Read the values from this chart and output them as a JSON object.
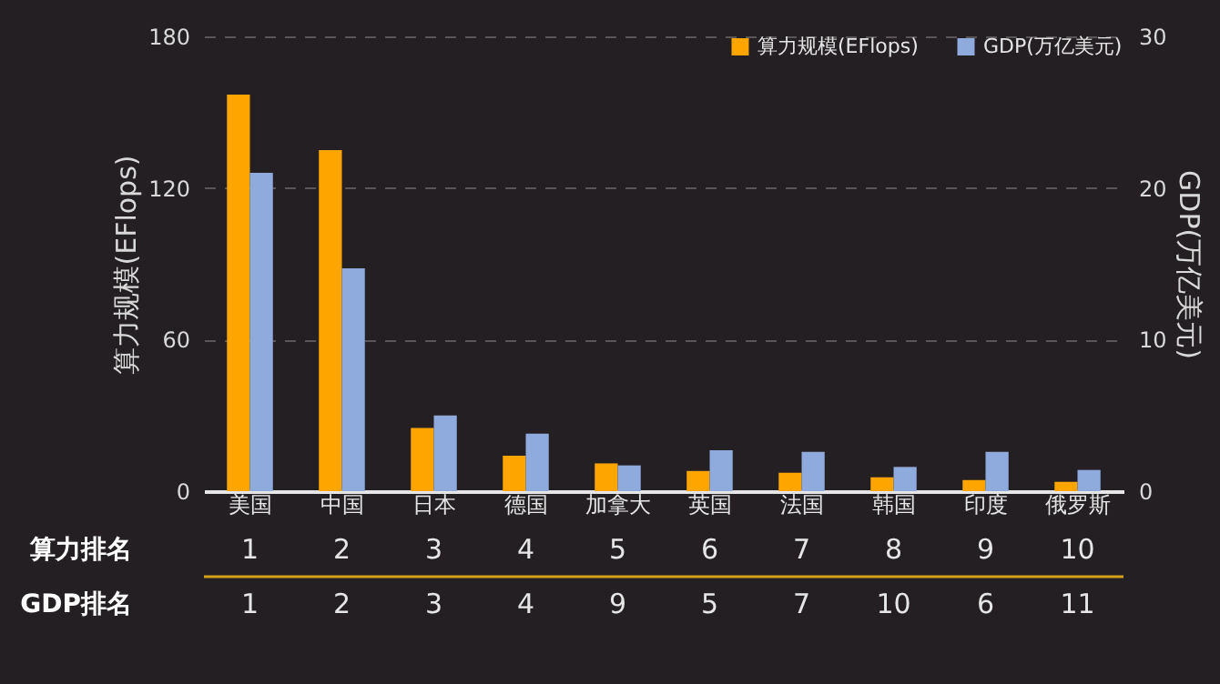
{
  "chart_data": {
    "type": "bar",
    "ylabel": "算力规模(EFlops)",
    "y2label": "GDP(万亿美元)",
    "categories": [
      "美国",
      "中国",
      "日本",
      "德国",
      "加拿大",
      "英国",
      "法国",
      "韩国",
      "印度",
      "俄罗斯"
    ],
    "series": [
      {
        "name": "算力规模(EFlops)",
        "color": "#ffa500",
        "values": [
          157,
          135,
          25,
          14,
          11,
          8,
          7.3,
          5.5,
          4.4,
          3.7
        ]
      },
      {
        "name": "GDP(万亿美元)",
        "color": "#8faadc",
        "axis": "y2",
        "values": [
          21,
          14.7,
          5.0,
          3.8,
          1.7,
          2.7,
          2.6,
          1.6,
          2.6,
          1.4
        ]
      }
    ],
    "ylim": [
      0,
      180
    ],
    "yticks": [
      0,
      60,
      120,
      180
    ],
    "y2lim": [
      0,
      30
    ],
    "y2ticks": [
      0,
      10,
      20,
      30
    ],
    "grid": "y",
    "legend": "top right",
    "annotations": [
      "算力排名",
      "1",
      "2",
      "3",
      "4",
      "5",
      "6",
      "7",
      "8",
      "9",
      "10",
      "GDP排名",
      "1",
      "2",
      "3",
      "4",
      "9",
      "5",
      "7",
      "10",
      "6",
      "11"
    ]
  }
}
